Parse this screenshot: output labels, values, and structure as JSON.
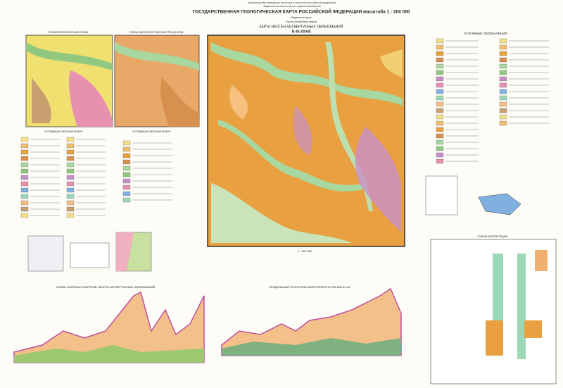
{
  "header": {
    "ministry": "МИНИСТЕРСТВО ПРИРОДНЫХ РЕСУРСОВ И ЭКОЛОГИИ РОССИЙСКОЙ ФЕДЕРАЦИИ",
    "agency": "ФЕДЕРАЛЬНОЕ АГЕНТСТВО ПО НЕДРОПОЛЬЗОВАНИЮ",
    "title": "ГОСУДАРСТВЕННАЯ ГЕОЛОГИЧЕСКАЯ КАРТА РОССИЙСКОЙ ФЕДЕРАЦИИ масштаба 1 : 200 000",
    "edition": "Издание второе",
    "series": "Горно-Алтайская серия",
    "map_title": "КАРТА НЕОГЕН-ЧЕТВЕРТИЧНЫХ ОБРАЗОВАНИЙ",
    "sheet": "N-45-XXXIII"
  },
  "schemes": {
    "geomorph": "ГЕОМОРФОЛОГИЧЕСКАЯ СХЕМА",
    "exogeo": "СХЕМА ЭКЗОГЕОЛОГИЧЕСКИХ ПРОЦЕССОВ",
    "legend_left": "УСЛОВНЫЕ ОБОЗНАЧЕНИЯ",
    "legend_mid": "УСЛОВНЫЕ ОБОЗНАЧЕНИЯ"
  },
  "legend": {
    "title": "УСЛОВНЫЕ ОБОЗНАЧЕНИЯ"
  },
  "scale": "1 : 200 000",
  "sections": {
    "left": "СХЕМА ОПОРНЫХ РАЗРЕЗОВ НЕОГЕН-ЧЕТВЕРТИЧНЫХ ОБРАЗОВАНИЙ",
    "right": "ПРОДОЛЬНЫЙ ГЕОЛОГИЧЕСКИЙ РАЗРЕЗ ПО ЛИНИИ А1-А2"
  },
  "correlation": {
    "title": "СХЕМА КОРРЕЛЯЦИИ"
  }
}
